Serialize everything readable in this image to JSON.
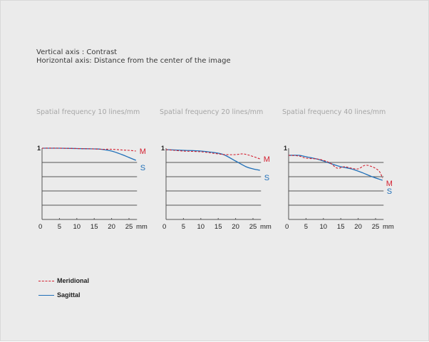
{
  "header": {
    "vertical_axis": "Vertical axis : Contrast",
    "horizontal_axis": "Horizontal axis: Distance from the center of the image"
  },
  "colors": {
    "meridional": "#d32030",
    "sagittal": "#1f6fb8",
    "grid": "#555555",
    "title": "#a6a6a6"
  },
  "legend": [
    {
      "label": "Meridional",
      "style": "dashed",
      "color": "#d32030"
    },
    {
      "label": "Sagittal",
      "style": "solid",
      "color": "#1f6fb8"
    }
  ],
  "chart_data": [
    {
      "type": "line",
      "title": "Spatial frequency 10 lines/mm",
      "xlabel": "mm",
      "ylabel": "Contrast",
      "xlim": [
        0,
        27
      ],
      "ylim": [
        0,
        1
      ],
      "xticks": [
        0,
        5,
        10,
        15,
        20,
        25
      ],
      "yticks_labeled": [
        1
      ],
      "grid": true,
      "series": [
        {
          "name": "Meridional",
          "label": "M",
          "x": [
            0,
            5,
            10,
            15,
            17,
            20,
            23,
            25,
            27
          ],
          "y": [
            1.0,
            1.0,
            0.995,
            0.99,
            0.985,
            0.985,
            0.975,
            0.97,
            0.96
          ]
        },
        {
          "name": "Sagittal",
          "label": "S",
          "x": [
            0,
            5,
            10,
            15,
            17,
            20,
            23,
            25,
            27
          ],
          "y": [
            1.0,
            1.0,
            0.995,
            0.99,
            0.985,
            0.96,
            0.91,
            0.87,
            0.83
          ]
        }
      ]
    },
    {
      "type": "line",
      "title": "Spatial frequency 20 lines/mm",
      "xlabel": "mm",
      "ylabel": "Contrast",
      "xlim": [
        0,
        27
      ],
      "ylim": [
        0,
        1
      ],
      "xticks": [
        0,
        5,
        10,
        15,
        20,
        25
      ],
      "yticks_labeled": [
        1
      ],
      "grid": true,
      "series": [
        {
          "name": "Meridional",
          "label": "M",
          "x": [
            0,
            5,
            10,
            15,
            17,
            20,
            22,
            24,
            27
          ],
          "y": [
            0.98,
            0.96,
            0.95,
            0.92,
            0.91,
            0.91,
            0.92,
            0.9,
            0.85
          ]
        },
        {
          "name": "Sagittal",
          "label": "S",
          "x": [
            0,
            5,
            10,
            15,
            17,
            20,
            23,
            25,
            27
          ],
          "y": [
            0.98,
            0.97,
            0.96,
            0.93,
            0.9,
            0.82,
            0.74,
            0.71,
            0.69
          ]
        }
      ]
    },
    {
      "type": "line",
      "title": "Spatial frequency 40 lines/mm",
      "xlabel": "mm",
      "ylabel": "Contrast",
      "xlim": [
        0,
        27
      ],
      "ylim": [
        0,
        1
      ],
      "xticks": [
        0,
        5,
        10,
        15,
        20,
        25
      ],
      "yticks_labeled": [
        1
      ],
      "grid": true,
      "series": [
        {
          "name": "Meridional",
          "label": "M",
          "x": [
            0,
            3,
            5,
            8,
            10,
            12,
            14,
            16,
            18,
            20,
            22,
            24,
            26,
            27
          ],
          "y": [
            0.9,
            0.89,
            0.86,
            0.85,
            0.83,
            0.79,
            0.72,
            0.74,
            0.72,
            0.71,
            0.76,
            0.74,
            0.68,
            0.58
          ]
        },
        {
          "name": "Sagittal",
          "label": "S",
          "x": [
            0,
            3,
            5,
            8,
            10,
            13,
            15,
            18,
            21,
            24,
            27
          ],
          "y": [
            0.9,
            0.9,
            0.88,
            0.85,
            0.82,
            0.77,
            0.74,
            0.71,
            0.66,
            0.6,
            0.55
          ]
        }
      ]
    }
  ]
}
